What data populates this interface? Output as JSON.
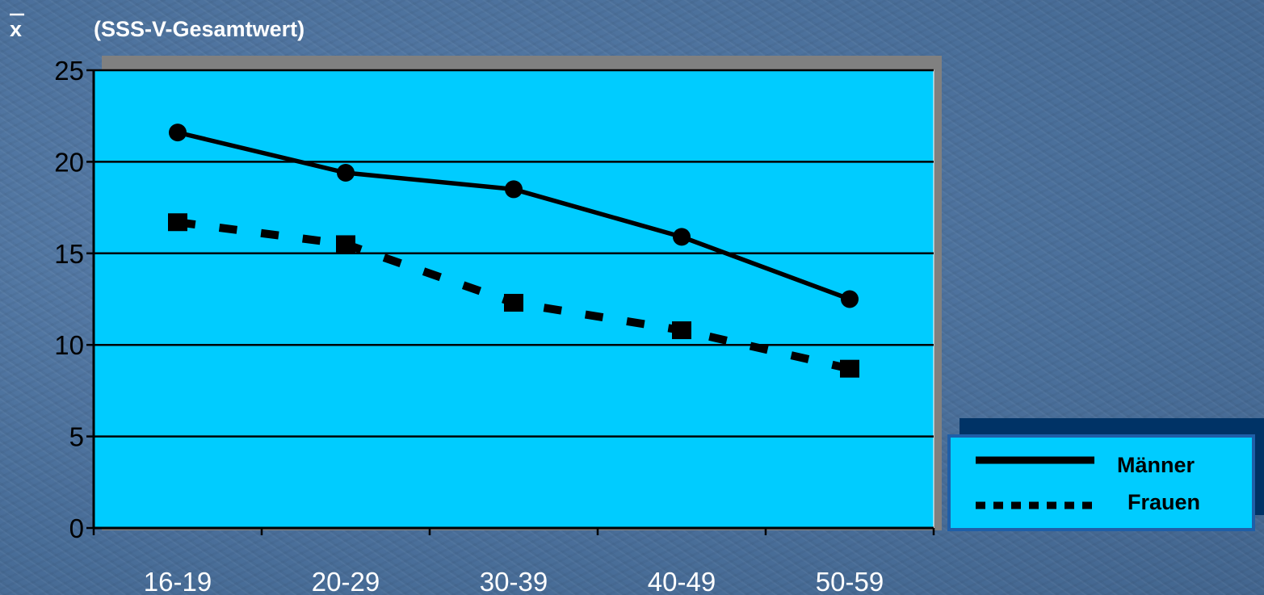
{
  "chart_data": {
    "type": "line",
    "title": "",
    "xlabel": "",
    "ylabel": "(SSS-V-Gesamtwert)",
    "ylabel_symbol": "x",
    "categories": [
      "16-19",
      "20-29",
      "30-39",
      "40-49",
      "50-59"
    ],
    "yticks": [
      "0",
      "5",
      "10",
      "15",
      "20",
      "25"
    ],
    "ylim": [
      0,
      25
    ],
    "grid": true,
    "legend_position": "bottom-right",
    "series": [
      {
        "name": "Männer",
        "style": "solid",
        "marker": "circle",
        "values": [
          21.6,
          19.4,
          18.5,
          15.9,
          12.5
        ]
      },
      {
        "name": "Frauen",
        "style": "dotted",
        "marker": "square",
        "values": [
          16.7,
          15.5,
          12.3,
          10.8,
          8.7
        ]
      }
    ],
    "colors": {
      "plot_background": "#00ccff",
      "plot_shadow": "#808080",
      "line": "#000000",
      "legend_shadow": "#003366",
      "legend_border": "#1f5fa8"
    }
  }
}
